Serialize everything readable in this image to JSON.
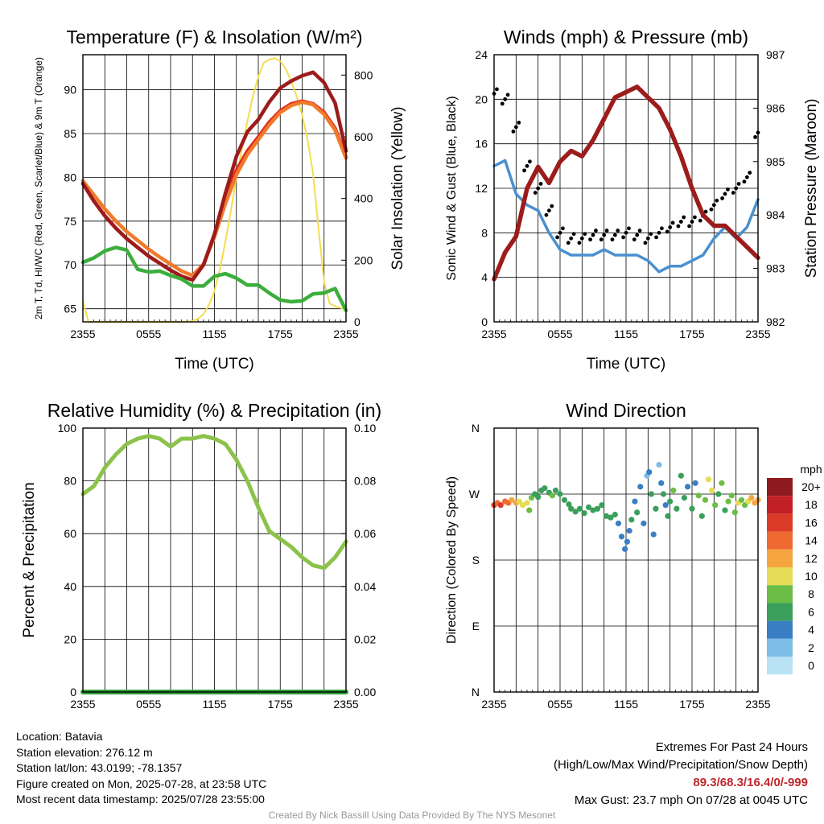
{
  "chart_data": [
    {
      "type": "line",
      "title": "Temperature (F) & Insolation (W/m²)",
      "xlabel": "Time (UTC)",
      "ylabel": "2m T, Td, HI/WC (Red, Green, Scarlet/Blue) & 9m T (Orange)",
      "y2label": "Solar Insolation (Yellow)",
      "x_ticks": [
        "2355",
        "0555",
        "1155",
        "1755",
        "2355"
      ],
      "ylim": [
        63.5,
        94
      ],
      "y_ticks": [
        65,
        70,
        75,
        80,
        85,
        90
      ],
      "y2lim": [
        0,
        866
      ],
      "y2_ticks": [
        0,
        200,
        400,
        600,
        800
      ],
      "grid": true,
      "series": [
        {
          "name": "2m T",
          "color": "#e02a1e",
          "axis": "left",
          "x": [
            0,
            1,
            2,
            3,
            4,
            5,
            6,
            7,
            8,
            9,
            10,
            11,
            12,
            13,
            14,
            15,
            16,
            17,
            18,
            19,
            20,
            21,
            22,
            23,
            24
          ],
          "values": [
            79.3,
            77.3,
            75.6,
            74.2,
            73.0,
            72.0,
            71.0,
            70.2,
            69.4,
            68.7,
            68.3,
            70.0,
            73.5,
            77.5,
            80.8,
            83.0,
            84.6,
            86.3,
            87.6,
            88.4,
            88.7,
            88.4,
            87.4,
            85.6,
            82.3
          ]
        },
        {
          "name": "9m T",
          "color": "#f07a2a",
          "axis": "left",
          "x": [
            0,
            1,
            2,
            3,
            4,
            5,
            6,
            7,
            8,
            9,
            10,
            11,
            12,
            13,
            14,
            15,
            16,
            17,
            18,
            19,
            20,
            21,
            22,
            23,
            24
          ],
          "values": [
            79.6,
            78.0,
            76.4,
            75.0,
            73.8,
            72.8,
            71.8,
            70.9,
            70.1,
            69.3,
            68.8,
            70.1,
            73.2,
            77.0,
            80.3,
            82.6,
            84.3,
            86.0,
            87.4,
            88.2,
            88.6,
            88.3,
            87.2,
            85.4,
            82.2
          ]
        },
        {
          "name": "HI/WC",
          "color": "#9c1c1c",
          "axis": "left",
          "x": [
            0,
            1,
            2,
            3,
            4,
            5,
            6,
            7,
            8,
            9,
            10,
            11,
            12,
            13,
            14,
            15,
            16,
            17,
            18,
            19,
            20,
            21,
            22,
            23,
            24
          ],
          "values": [
            79.3,
            77.3,
            75.6,
            74.2,
            73.0,
            72.0,
            71.0,
            70.2,
            69.4,
            68.7,
            68.3,
            70.0,
            73.5,
            78.2,
            82.4,
            85.2,
            86.6,
            88.6,
            90.2,
            91.0,
            91.6,
            92.0,
            90.8,
            88.5,
            83.0
          ]
        },
        {
          "name": "Td",
          "color": "#3cae3c",
          "axis": "left",
          "x": [
            0,
            1,
            2,
            3,
            4,
            5,
            6,
            7,
            8,
            9,
            10,
            11,
            12,
            13,
            14,
            15,
            16,
            17,
            18,
            19,
            20,
            21,
            22,
            23,
            24
          ],
          "values": [
            70.3,
            70.8,
            71.6,
            72.0,
            71.7,
            69.5,
            69.2,
            69.3,
            68.8,
            68.4,
            67.6,
            67.6,
            68.7,
            69.0,
            68.5,
            67.7,
            67.7,
            66.8,
            66.0,
            65.8,
            65.9,
            66.7,
            66.8,
            67.3,
            64.8
          ]
        },
        {
          "name": "Solar Insolation",
          "color": "#f3dd4e",
          "axis": "right",
          "x": [
            0,
            0.5,
            1,
            2,
            3,
            4,
            5,
            6,
            7,
            8,
            9,
            9.5,
            10,
            10.5,
            11,
            11.5,
            12,
            12.5,
            13,
            13.5,
            14,
            14.5,
            15,
            15.5,
            16,
            16.5,
            17,
            17.5,
            18,
            18.5,
            19,
            19.5,
            20,
            20.5,
            21,
            21.5,
            22,
            22.5,
            23,
            23.5,
            24
          ],
          "values": [
            70,
            0,
            0,
            0,
            0,
            0,
            0,
            0,
            0,
            0,
            0,
            0,
            3,
            10,
            25,
            55,
            100,
            170,
            260,
            360,
            470,
            560,
            650,
            730,
            795,
            840,
            850,
            855,
            845,
            820,
            780,
            730,
            670,
            590,
            480,
            300,
            130,
            60,
            50,
            45,
            40
          ]
        }
      ]
    },
    {
      "type": "line",
      "title": "Winds (mph) & Pressure (mb)",
      "xlabel": "Time (UTC)",
      "ylabel": "Sonic Wind & Gust (Blue, Black)",
      "y2label": "Station Pressure (Maroon)",
      "x_ticks": [
        "2355",
        "0555",
        "1155",
        "1755",
        "2355"
      ],
      "ylim": [
        0,
        24
      ],
      "y_ticks": [
        0,
        4,
        8,
        12,
        16,
        20,
        24
      ],
      "y2lim": [
        982,
        987
      ],
      "y2_ticks": [
        982,
        983,
        984,
        985,
        986,
        987
      ],
      "grid": true,
      "series": [
        {
          "name": "Sonic Wind",
          "color": "#4a90d0",
          "axis": "left",
          "x": [
            0,
            1,
            2,
            3,
            4,
            5,
            6,
            7,
            8,
            9,
            10,
            11,
            12,
            13,
            14,
            15,
            16,
            17,
            18,
            19,
            20,
            21,
            22,
            23,
            24
          ],
          "values": [
            14.0,
            14.5,
            11.5,
            10.5,
            10.0,
            8.0,
            6.5,
            6.0,
            6.0,
            6.0,
            6.5,
            6.0,
            6.0,
            6.0,
            5.5,
            4.5,
            5.0,
            5.0,
            5.5,
            6.0,
            7.5,
            8.5,
            7.5,
            8.5,
            11.0
          ]
        },
        {
          "name": "Gust",
          "color": "#000000",
          "axis": "left",
          "x": [
            0,
            1,
            2,
            3,
            4,
            5,
            6,
            7,
            8,
            9,
            10,
            11,
            12,
            13,
            14,
            15,
            16,
            17,
            18,
            19,
            20,
            21,
            22,
            23,
            24
          ],
          "values": [
            20.5,
            20.0,
            17.5,
            14.0,
            12.0,
            10.0,
            8.0,
            7.5,
            7.5,
            7.8,
            7.8,
            7.8,
            8.0,
            7.8,
            7.5,
            8.0,
            8.5,
            9.0,
            9.0,
            9.5,
            10.5,
            11.5,
            12.0,
            13.0,
            17.0
          ]
        },
        {
          "name": "Station Pressure",
          "color": "#9c1c1c",
          "axis": "right",
          "x": [
            0,
            1,
            2,
            3,
            4,
            5,
            6,
            7,
            8,
            9,
            10,
            11,
            12,
            13,
            14,
            15,
            16,
            17,
            18,
            19,
            20,
            21,
            22,
            23,
            24
          ],
          "values": [
            982.8,
            983.3,
            983.6,
            984.5,
            984.9,
            984.6,
            985.0,
            985.2,
            985.1,
            985.4,
            985.8,
            986.2,
            986.3,
            986.4,
            986.2,
            986.0,
            985.6,
            985.1,
            984.5,
            984.0,
            983.8,
            983.8,
            983.6,
            983.4,
            983.2
          ]
        }
      ]
    },
    {
      "type": "line",
      "title": "Relative Humidity (%) & Precipitation (in)",
      "xlabel": "",
      "ylabel": "Percent & Precipitation",
      "x_ticks": [
        "2355",
        "0555",
        "1155",
        "1755",
        "2355"
      ],
      "ylim": [
        0,
        100
      ],
      "y_ticks": [
        0,
        20,
        40,
        60,
        80,
        100
      ],
      "y2lim": [
        0,
        0.1
      ],
      "y2_ticks": [
        "0.00",
        "0.02",
        "0.04",
        "0.06",
        "0.08",
        "0.10"
      ],
      "grid": true,
      "series": [
        {
          "name": "Relative Humidity",
          "color": "#8bc34a",
          "axis": "left",
          "x": [
            0,
            1,
            2,
            3,
            4,
            5,
            6,
            7,
            8,
            9,
            10,
            11,
            12,
            13,
            14,
            15,
            16,
            17,
            18,
            19,
            20,
            21,
            22,
            23,
            24
          ],
          "values": [
            75,
            78,
            85,
            90,
            94,
            96,
            97,
            96,
            93,
            96,
            96,
            97,
            96,
            94,
            88,
            80,
            70,
            61,
            58,
            55,
            51,
            48,
            47,
            51,
            57
          ]
        },
        {
          "name": "Precipitation",
          "color": "#2e9e3a",
          "axis": "right",
          "x": [
            0,
            24
          ],
          "values": [
            0,
            0
          ]
        }
      ]
    },
    {
      "type": "scatter",
      "title": "Wind Direction",
      "xlabel": "",
      "ylabel": "Direction (Colored By Speed)",
      "x_ticks": [
        "2355",
        "0555",
        "1155",
        "1755",
        "2355"
      ],
      "y_ticks": [
        "N",
        "E",
        "S",
        "W",
        "N"
      ],
      "ylim": [
        0,
        360
      ],
      "colorbar_label": "mph",
      "colorbar_labels": [
        "20+",
        "18",
        "16",
        "14",
        "12",
        "10",
        "8",
        "6",
        "4",
        "2",
        "0"
      ],
      "grid": true,
      "points": [
        {
          "x": 0.0,
          "deg": 255,
          "mph": 15
        },
        {
          "x": 0.3,
          "deg": 258,
          "mph": 14
        },
        {
          "x": 0.6,
          "deg": 255,
          "mph": 16
        },
        {
          "x": 1.0,
          "deg": 260,
          "mph": 13
        },
        {
          "x": 1.3,
          "deg": 258,
          "mph": 14
        },
        {
          "x": 1.6,
          "deg": 262,
          "mph": 12
        },
        {
          "x": 2.0,
          "deg": 258,
          "mph": 11
        },
        {
          "x": 2.3,
          "deg": 260,
          "mph": 10
        },
        {
          "x": 2.6,
          "deg": 255,
          "mph": 9
        },
        {
          "x": 3.0,
          "deg": 258,
          "mph": 9
        },
        {
          "x": 3.2,
          "deg": 248,
          "mph": 7
        },
        {
          "x": 3.4,
          "deg": 265,
          "mph": 8
        },
        {
          "x": 3.7,
          "deg": 270,
          "mph": 6
        },
        {
          "x": 4.0,
          "deg": 266,
          "mph": 6
        },
        {
          "x": 4.3,
          "deg": 275,
          "mph": 5
        },
        {
          "x": 4.6,
          "deg": 278,
          "mph": 5
        },
        {
          "x": 5.0,
          "deg": 272,
          "mph": 6
        },
        {
          "x": 5.3,
          "deg": 268,
          "mph": 7
        },
        {
          "x": 5.6,
          "deg": 275,
          "mph": 6
        },
        {
          "x": 6.0,
          "deg": 270,
          "mph": 6
        },
        {
          "x": 6.4,
          "deg": 262,
          "mph": 5
        },
        {
          "x": 6.8,
          "deg": 256,
          "mph": 6
        },
        {
          "x": 7.0,
          "deg": 250,
          "mph": 5
        },
        {
          "x": 7.4,
          "deg": 246,
          "mph": 6
        },
        {
          "x": 7.8,
          "deg": 250,
          "mph": 6
        },
        {
          "x": 8.2,
          "deg": 244,
          "mph": 5
        },
        {
          "x": 8.6,
          "deg": 252,
          "mph": 6
        },
        {
          "x": 9.0,
          "deg": 248,
          "mph": 6
        },
        {
          "x": 9.4,
          "deg": 250,
          "mph": 6
        },
        {
          "x": 9.8,
          "deg": 255,
          "mph": 6
        },
        {
          "x": 10.2,
          "deg": 240,
          "mph": 5
        },
        {
          "x": 10.6,
          "deg": 238,
          "mph": 6
        },
        {
          "x": 11.0,
          "deg": 242,
          "mph": 5
        },
        {
          "x": 11.3,
          "deg": 230,
          "mph": 3
        },
        {
          "x": 11.6,
          "deg": 212,
          "mph": 4
        },
        {
          "x": 11.9,
          "deg": 195,
          "mph": 4
        },
        {
          "x": 12.1,
          "deg": 205,
          "mph": 3
        },
        {
          "x": 12.3,
          "deg": 220,
          "mph": 4
        },
        {
          "x": 12.5,
          "deg": 235,
          "mph": 5
        },
        {
          "x": 12.8,
          "deg": 260,
          "mph": 4
        },
        {
          "x": 13.0,
          "deg": 245,
          "mph": 5
        },
        {
          "x": 13.3,
          "deg": 280,
          "mph": 3
        },
        {
          "x": 13.6,
          "deg": 230,
          "mph": 4
        },
        {
          "x": 13.9,
          "deg": 295,
          "mph": 2
        },
        {
          "x": 14.1,
          "deg": 300,
          "mph": 4
        },
        {
          "x": 14.3,
          "deg": 270,
          "mph": 5
        },
        {
          "x": 14.5,
          "deg": 215,
          "mph": 4
        },
        {
          "x": 14.7,
          "deg": 250,
          "mph": 6
        },
        {
          "x": 15.0,
          "deg": 310,
          "mph": 2
        },
        {
          "x": 15.2,
          "deg": 285,
          "mph": 4
        },
        {
          "x": 15.4,
          "deg": 270,
          "mph": 6
        },
        {
          "x": 15.6,
          "deg": 255,
          "mph": 4
        },
        {
          "x": 15.8,
          "deg": 240,
          "mph": 5
        },
        {
          "x": 16.0,
          "deg": 260,
          "mph": 6
        },
        {
          "x": 16.3,
          "deg": 275,
          "mph": 7
        },
        {
          "x": 16.6,
          "deg": 250,
          "mph": 5
        },
        {
          "x": 17.0,
          "deg": 295,
          "mph": 6
        },
        {
          "x": 17.3,
          "deg": 265,
          "mph": 5
        },
        {
          "x": 17.6,
          "deg": 280,
          "mph": 4
        },
        {
          "x": 18.0,
          "deg": 250,
          "mph": 6
        },
        {
          "x": 18.3,
          "deg": 285,
          "mph": 4
        },
        {
          "x": 18.6,
          "deg": 268,
          "mph": 7
        },
        {
          "x": 18.9,
          "deg": 240,
          "mph": 6
        },
        {
          "x": 19.2,
          "deg": 262,
          "mph": 8
        },
        {
          "x": 19.5,
          "deg": 290,
          "mph": 10
        },
        {
          "x": 19.8,
          "deg": 275,
          "mph": 9
        },
        {
          "x": 20.1,
          "deg": 255,
          "mph": 7
        },
        {
          "x": 20.4,
          "deg": 270,
          "mph": 6
        },
        {
          "x": 20.7,
          "deg": 285,
          "mph": 7
        },
        {
          "x": 21.0,
          "deg": 248,
          "mph": 6
        },
        {
          "x": 21.3,
          "deg": 260,
          "mph": 8
        },
        {
          "x": 21.6,
          "deg": 268,
          "mph": 7
        },
        {
          "x": 21.9,
          "deg": 245,
          "mph": 8
        },
        {
          "x": 22.2,
          "deg": 258,
          "mph": 9
        },
        {
          "x": 22.5,
          "deg": 262,
          "mph": 8
        },
        {
          "x": 22.8,
          "deg": 255,
          "mph": 7
        },
        {
          "x": 23.1,
          "deg": 260,
          "mph": 10
        },
        {
          "x": 23.4,
          "deg": 265,
          "mph": 11
        },
        {
          "x": 23.7,
          "deg": 258,
          "mph": 12
        },
        {
          "x": 24.0,
          "deg": 262,
          "mph": 12
        }
      ]
    }
  ],
  "colors": {
    "speed_scale": [
      "#b9e2f5",
      "#7dbde6",
      "#3a7fc4",
      "#3a9f5a",
      "#6bbd45",
      "#e6dc55",
      "#f7a541",
      "#ee6a30",
      "#dc3b2a",
      "#c12025",
      "#8e1b1e"
    ]
  },
  "footer": {
    "location": "Location: Batavia",
    "elevation": "Station elevation: 276.12 m",
    "latlon": "Station lat/lon: 43.0199; -78.1357",
    "created": "Figure created on Mon, 2025-07-28, at 23:58 UTC",
    "recent": "Most recent data timestamp: 2025/07/28 23:55:00",
    "extremes_title": "Extremes For Past 24 Hours",
    "extremes_legend": "(High/Low/Max Wind/Precipitation/Snow Depth)",
    "extremes_values": "89.3/68.3/16.4/0/-999",
    "max_gust": "Max Gust: 23.7 mph On 07/28 at 0045 UTC",
    "credit": "Created By Nick Bassill Using Data Provided By The NYS Mesonet"
  }
}
